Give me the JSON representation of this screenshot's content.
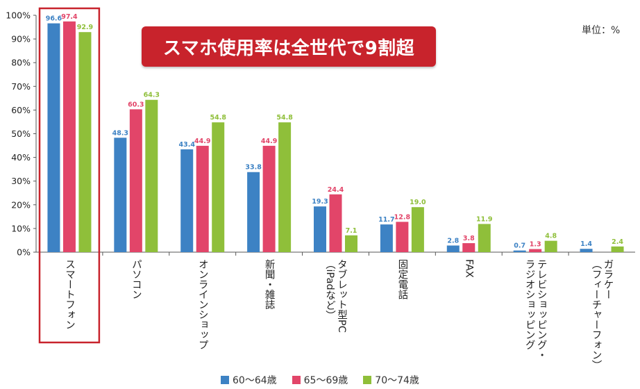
{
  "banner": {
    "text": "スマホ使用率は全世代で9割超"
  },
  "unit_label": "単位：%",
  "colors": {
    "s60": "#3d82c4",
    "s65": "#e24569",
    "s70": "#8fbf3a",
    "highlight": "#c8232c"
  },
  "chart_data": {
    "type": "bar",
    "title": "",
    "xlabel": "",
    "ylabel": "",
    "ylim": [
      0,
      100
    ],
    "yticks": [
      "0%",
      "10%",
      "20%",
      "30%",
      "40%",
      "50%",
      "60%",
      "70%",
      "80%",
      "90%",
      "100%"
    ],
    "categories": [
      "スマートフォン",
      "パソコン",
      "オンラインショップ",
      "新聞・雑誌",
      "タブレット型PC（iPadなど）",
      "固定電話",
      "FAX",
      "テレビショッピング・ラジオショッピング",
      "ガラケー（フィーチャーフォン）"
    ],
    "category_label_lines": [
      [
        "スマートフォン"
      ],
      [
        "パソコン"
      ],
      [
        "オンラインショップ"
      ],
      [
        "新聞・雑誌"
      ],
      [
        "タブレット型PC",
        "（iPadなど）"
      ],
      [
        "固定電話"
      ],
      [
        "FAX"
      ],
      [
        "テレビショッピング・",
        "ラジオショッピング"
      ],
      [
        "ガラケー",
        "（フィーチャーフォン）"
      ]
    ],
    "series": [
      {
        "name": "60〜64歳",
        "values": [
          96.6,
          48.3,
          43.4,
          33.8,
          19.3,
          11.7,
          2.8,
          0.7,
          1.4
        ],
        "labels": [
          "96.6",
          "48.3",
          "43.4",
          "33.8",
          "19.3",
          "11.7",
          "2.8",
          "0.7",
          "1.4"
        ]
      },
      {
        "name": "65〜69歳",
        "values": [
          97.4,
          60.3,
          44.9,
          44.9,
          24.4,
          12.8,
          3.8,
          1.3,
          null
        ],
        "labels": [
          "97.4",
          "60.3",
          "44.9",
          "44.9",
          "24.4",
          "12.8",
          "3.8",
          "1.3",
          null
        ]
      },
      {
        "name": "70〜74歳",
        "values": [
          92.9,
          64.3,
          54.8,
          54.8,
          7.1,
          19.0,
          11.9,
          4.8,
          2.4
        ],
        "labels": [
          "92.9",
          "64.3",
          "54.8",
          "54.8",
          "7.1",
          "19.0",
          "11.9",
          "4.8",
          "2.4"
        ]
      }
    ],
    "highlight_category": 0,
    "legend_position": "bottom",
    "grid": false
  }
}
